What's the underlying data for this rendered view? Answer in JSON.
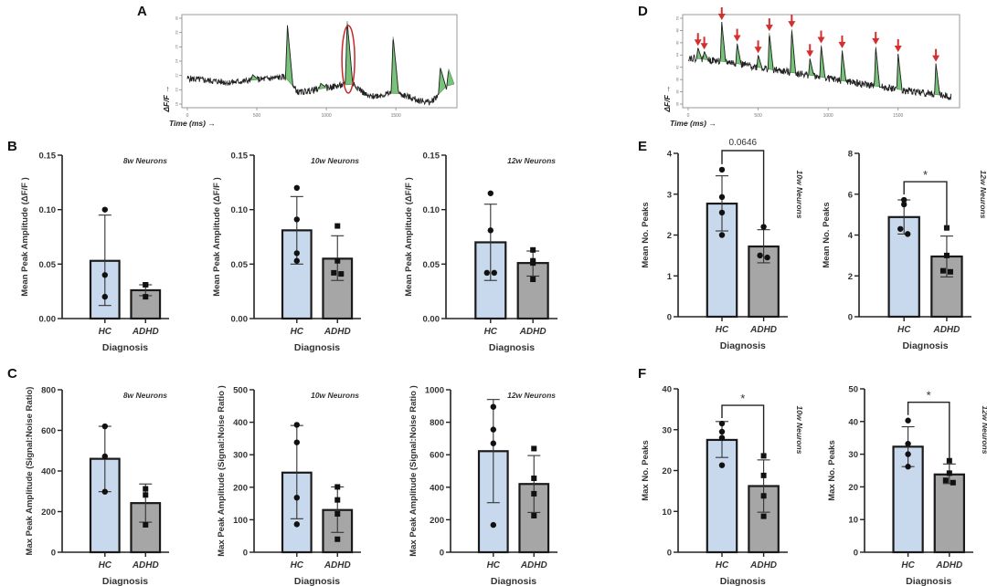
{
  "panel_labels": [
    "A",
    "B",
    "C",
    "D",
    "E",
    "F"
  ],
  "colors": {
    "hc_bar": "#c8d9ee",
    "adhd_bar": "#a6a6a6",
    "trace": "#222222",
    "peak_fill": "#4cae4c",
    "highlight": "#c62828",
    "arrow": "#d32f2f"
  },
  "chart_data": [
    {
      "id": "A",
      "type": "line",
      "title": "",
      "xlabel": "Time (ms) →",
      "ylabel": "ΔF/F →",
      "xlim": [
        0,
        1900
      ],
      "ylim": [
        18,
        30
      ],
      "xticks": [
        "0",
        "500",
        "1000",
        "1500"
      ],
      "yticks": [
        "18",
        "20",
        "22",
        "24",
        "26",
        "28",
        "30"
      ],
      "baseline": [
        [
          0,
          21.6
        ],
        [
          300,
          21.0
        ],
        [
          700,
          21.8
        ],
        [
          800,
          19.6
        ],
        [
          1100,
          20.6
        ],
        [
          1200,
          20.8
        ],
        [
          1300,
          19.0
        ],
        [
          1500,
          19.6
        ],
        [
          1650,
          18.6
        ],
        [
          1750,
          18.2
        ],
        [
          1880,
          20.8
        ]
      ],
      "peaks": [
        {
          "t": 470,
          "amp": 22.1
        },
        {
          "t": 720,
          "amp": 29.0
        },
        {
          "t": 960,
          "amp": 20.9
        },
        {
          "t": 1150,
          "amp": 29.6
        },
        {
          "t": 1480,
          "amp": 27.4
        },
        {
          "t": 1820,
          "amp": 23.1
        },
        {
          "t": 1880,
          "amp": 22.9
        }
      ],
      "highlighted_peak_t": 1150
    },
    {
      "id": "D",
      "type": "line",
      "title": "",
      "xlabel": "Time (ms) →",
      "ylabel": "ΔF/F →",
      "xlim": [
        0,
        1900
      ],
      "ylim": [
        36,
        50
      ],
      "xticks": [
        "0",
        "500",
        "1000",
        "1500"
      ],
      "yticks": [
        "36",
        "38",
        "40",
        "42",
        "44",
        "46",
        "48",
        "50"
      ],
      "baseline": [
        [
          0,
          43.6
        ],
        [
          300,
          42.8
        ],
        [
          600,
          41.6
        ],
        [
          900,
          40.6
        ],
        [
          1200,
          39.4
        ],
        [
          1500,
          38.4
        ],
        [
          1880,
          37.2
        ]
      ],
      "peaks": [
        {
          "t": 70,
          "amp": 45.2
        },
        {
          "t": 115,
          "amp": 44.6
        },
        {
          "t": 240,
          "amp": 49.4
        },
        {
          "t": 350,
          "amp": 45.9
        },
        {
          "t": 500,
          "amp": 44.0
        },
        {
          "t": 580,
          "amp": 47.6
        },
        {
          "t": 740,
          "amp": 48.2
        },
        {
          "t": 870,
          "amp": 43.4
        },
        {
          "t": 950,
          "amp": 45.6
        },
        {
          "t": 1100,
          "amp": 44.8
        },
        {
          "t": 1340,
          "amp": 45.4
        },
        {
          "t": 1500,
          "amp": 44.2
        },
        {
          "t": 1770,
          "amp": 42.6
        }
      ],
      "arrows_on_peaks": true
    },
    {
      "id": "B1",
      "type": "bar",
      "title": "8w Neurons",
      "xlabel": "Diagnosis",
      "ylabel": "Mean Peak Amplitude (ΔF/F )",
      "categories": [
        "HC",
        "ADHD"
      ],
      "ylim": [
        0,
        0.15
      ],
      "yticks": [
        "0.00",
        "0.05",
        "0.10",
        "0.15"
      ],
      "series": [
        {
          "name": "HC",
          "mean": 0.053,
          "sd_low": 0.012,
          "sd_high": 0.095,
          "points": [
            0.1,
            0.04,
            0.02
          ],
          "marker": "circle"
        },
        {
          "name": "ADHD",
          "mean": 0.026,
          "sd_low": 0.021,
          "sd_high": 0.031,
          "points": [
            0.031,
            0.031,
            0.02
          ],
          "marker": "square"
        }
      ]
    },
    {
      "id": "B2",
      "type": "bar",
      "title": "10w Neurons",
      "xlabel": "Diagnosis",
      "ylabel": "Mean Peak Amplitude (ΔF/F )",
      "categories": [
        "HC",
        "ADHD"
      ],
      "ylim": [
        0,
        0.15
      ],
      "yticks": [
        "0.00",
        "0.05",
        "0.10",
        "0.15"
      ],
      "series": [
        {
          "name": "HC",
          "mean": 0.081,
          "sd_low": 0.05,
          "sd_high": 0.112,
          "points": [
            0.12,
            0.091,
            0.06,
            0.053
          ],
          "marker": "circle"
        },
        {
          "name": "ADHD",
          "mean": 0.055,
          "sd_low": 0.035,
          "sd_high": 0.076,
          "points": [
            0.085,
            0.053,
            0.042,
            0.041
          ],
          "marker": "square"
        }
      ]
    },
    {
      "id": "B3",
      "type": "bar",
      "title": "12w Neurons",
      "xlabel": "Diagnosis",
      "ylabel": "Mean Peak Amplitude (ΔF/F )",
      "categories": [
        "HC",
        "ADHD"
      ],
      "ylim": [
        0,
        0.15
      ],
      "yticks": [
        "0.00",
        "0.05",
        "0.10",
        "0.15"
      ],
      "series": [
        {
          "name": "HC",
          "mean": 0.07,
          "sd_low": 0.035,
          "sd_high": 0.105,
          "points": [
            0.115,
            0.081,
            0.042,
            0.042
          ],
          "marker": "circle"
        },
        {
          "name": "ADHD",
          "mean": 0.051,
          "sd_low": 0.039,
          "sd_high": 0.062,
          "points": [
            0.063,
            0.053,
            0.051,
            0.036
          ],
          "marker": "square"
        }
      ]
    },
    {
      "id": "C1",
      "type": "bar",
      "title": "8w Neurons",
      "xlabel": "Diagnosis",
      "ylabel": "Max Peak Amplitude (Signal:Noise Ratio)",
      "categories": [
        "HC",
        "ADHD"
      ],
      "ylim": [
        0,
        800
      ],
      "yticks": [
        "0",
        "200",
        "400",
        "600",
        "800"
      ],
      "series": [
        {
          "name": "HC",
          "mean": 460,
          "sd_low": 298,
          "sd_high": 620,
          "points": [
            620,
            472,
            298
          ],
          "marker": "circle"
        },
        {
          "name": "ADHD",
          "mean": 242,
          "sd_low": 148,
          "sd_high": 336,
          "points": [
            312,
            282,
            135
          ],
          "marker": "square"
        }
      ]
    },
    {
      "id": "C2",
      "type": "bar",
      "title": "10w Neurons",
      "xlabel": "Diagnosis",
      "ylabel": "Max Peak Amplitude (Signal:Noise Ratio )",
      "categories": [
        "HC",
        "ADHD"
      ],
      "ylim": [
        0,
        500
      ],
      "yticks": [
        "0",
        "100",
        "200",
        "300",
        "400",
        "500"
      ],
      "series": [
        {
          "name": "HC",
          "mean": 245,
          "sd_low": 103,
          "sd_high": 390,
          "points": [
            392,
            338,
            168,
            86
          ],
          "marker": "circle"
        },
        {
          "name": "ADHD",
          "mean": 130,
          "sd_low": 61,
          "sd_high": 201,
          "points": [
            201,
            161,
            118,
            40
          ],
          "marker": "square"
        }
      ]
    },
    {
      "id": "C3",
      "type": "bar",
      "title": "12w Neurons",
      "xlabel": "Diagnosis",
      "ylabel": "Max Peak Amplitude (Signal:Noise Ratio )",
      "categories": [
        "HC",
        "ADHD"
      ],
      "ylim": [
        0,
        1000
      ],
      "yticks": [
        "0",
        "200",
        "400",
        "600",
        "800",
        "1000"
      ],
      "series": [
        {
          "name": "HC",
          "mean": 622,
          "sd_low": 305,
          "sd_high": 940,
          "points": [
            895,
            755,
            670,
            168
          ],
          "marker": "circle"
        },
        {
          "name": "ADHD",
          "mean": 420,
          "sd_low": 245,
          "sd_high": 595,
          "points": [
            638,
            455,
            360,
            225
          ],
          "marker": "square"
        }
      ]
    },
    {
      "id": "E1",
      "type": "bar",
      "title": "10w Neurons",
      "title_side": "right-vertical",
      "xlabel": "Diagnosis",
      "ylabel": "Mean No. Peaks",
      "categories": [
        "HC",
        "ADHD"
      ],
      "ylim": [
        0,
        4
      ],
      "yticks": [
        "0",
        "1",
        "2",
        "3",
        "4"
      ],
      "significance": "0.0646",
      "series": [
        {
          "name": "HC",
          "mean": 2.77,
          "sd_low": 2.1,
          "sd_high": 3.45,
          "points": [
            3.6,
            2.93,
            2.55,
            2.0
          ],
          "marker": "circle"
        },
        {
          "name": "ADHD",
          "mean": 1.72,
          "sd_low": 1.32,
          "sd_high": 2.13,
          "points": [
            2.2,
            1.5,
            1.45
          ],
          "marker": "circle"
        }
      ]
    },
    {
      "id": "E2",
      "type": "bar",
      "title": "12w Neurons",
      "title_side": "right-vertical",
      "xlabel": "Diagnosis",
      "ylabel": "Mean No.  Peaks",
      "categories": [
        "HC",
        "ADHD"
      ],
      "ylim": [
        0,
        8
      ],
      "yticks": [
        "0",
        "2",
        "4",
        "6",
        "8"
      ],
      "significance": "*",
      "series": [
        {
          "name": "HC",
          "mean": 4.88,
          "sd_low": 4.05,
          "sd_high": 5.72,
          "points": [
            5.72,
            5.5,
            4.3,
            4.05
          ],
          "marker": "circle"
        },
        {
          "name": "ADHD",
          "mean": 2.95,
          "sd_low": 1.95,
          "sd_high": 3.95,
          "points": [
            4.35,
            3.0,
            2.25,
            2.2
          ],
          "marker": "square"
        }
      ]
    },
    {
      "id": "F1",
      "type": "bar",
      "title": "10w Neurons",
      "title_side": "right-vertical",
      "xlabel": "Diagnosis",
      "ylabel": "Max No. Peaks",
      "categories": [
        "HC",
        "ADHD"
      ],
      "ylim": [
        0,
        40
      ],
      "yticks": [
        "0",
        "10",
        "20",
        "30",
        "40"
      ],
      "significance": "*",
      "series": [
        {
          "name": "HC",
          "mean": 27.5,
          "sd_low": 23.2,
          "sd_high": 32.0,
          "points": [
            31.5,
            29.5,
            28.0,
            21.3
          ],
          "marker": "circle"
        },
        {
          "name": "ADHD",
          "mean": 16.2,
          "sd_low": 9.8,
          "sd_high": 22.6,
          "points": [
            23.6,
            18.8,
            13.8,
            8.8
          ],
          "marker": "square"
        }
      ]
    },
    {
      "id": "F2",
      "type": "bar",
      "title": "12w Neurons",
      "title_side": "right-vertical",
      "xlabel": "Diagnosis",
      "ylabel": "Max No. Peaks",
      "categories": [
        "HC",
        "ADHD"
      ],
      "ylim": [
        0,
        50
      ],
      "yticks": [
        "0",
        "10",
        "20",
        "30",
        "40",
        "50"
      ],
      "significance": "*",
      "series": [
        {
          "name": "HC",
          "mean": 32.3,
          "sd_low": 26.2,
          "sd_high": 38.4,
          "points": [
            40.3,
            33.2,
            30.0,
            26.2
          ],
          "marker": "circle"
        },
        {
          "name": "ADHD",
          "mean": 23.8,
          "sd_low": 21.0,
          "sd_high": 27.0,
          "points": [
            28.0,
            24.2,
            22.0,
            21.3
          ],
          "marker": "square"
        }
      ]
    }
  ]
}
